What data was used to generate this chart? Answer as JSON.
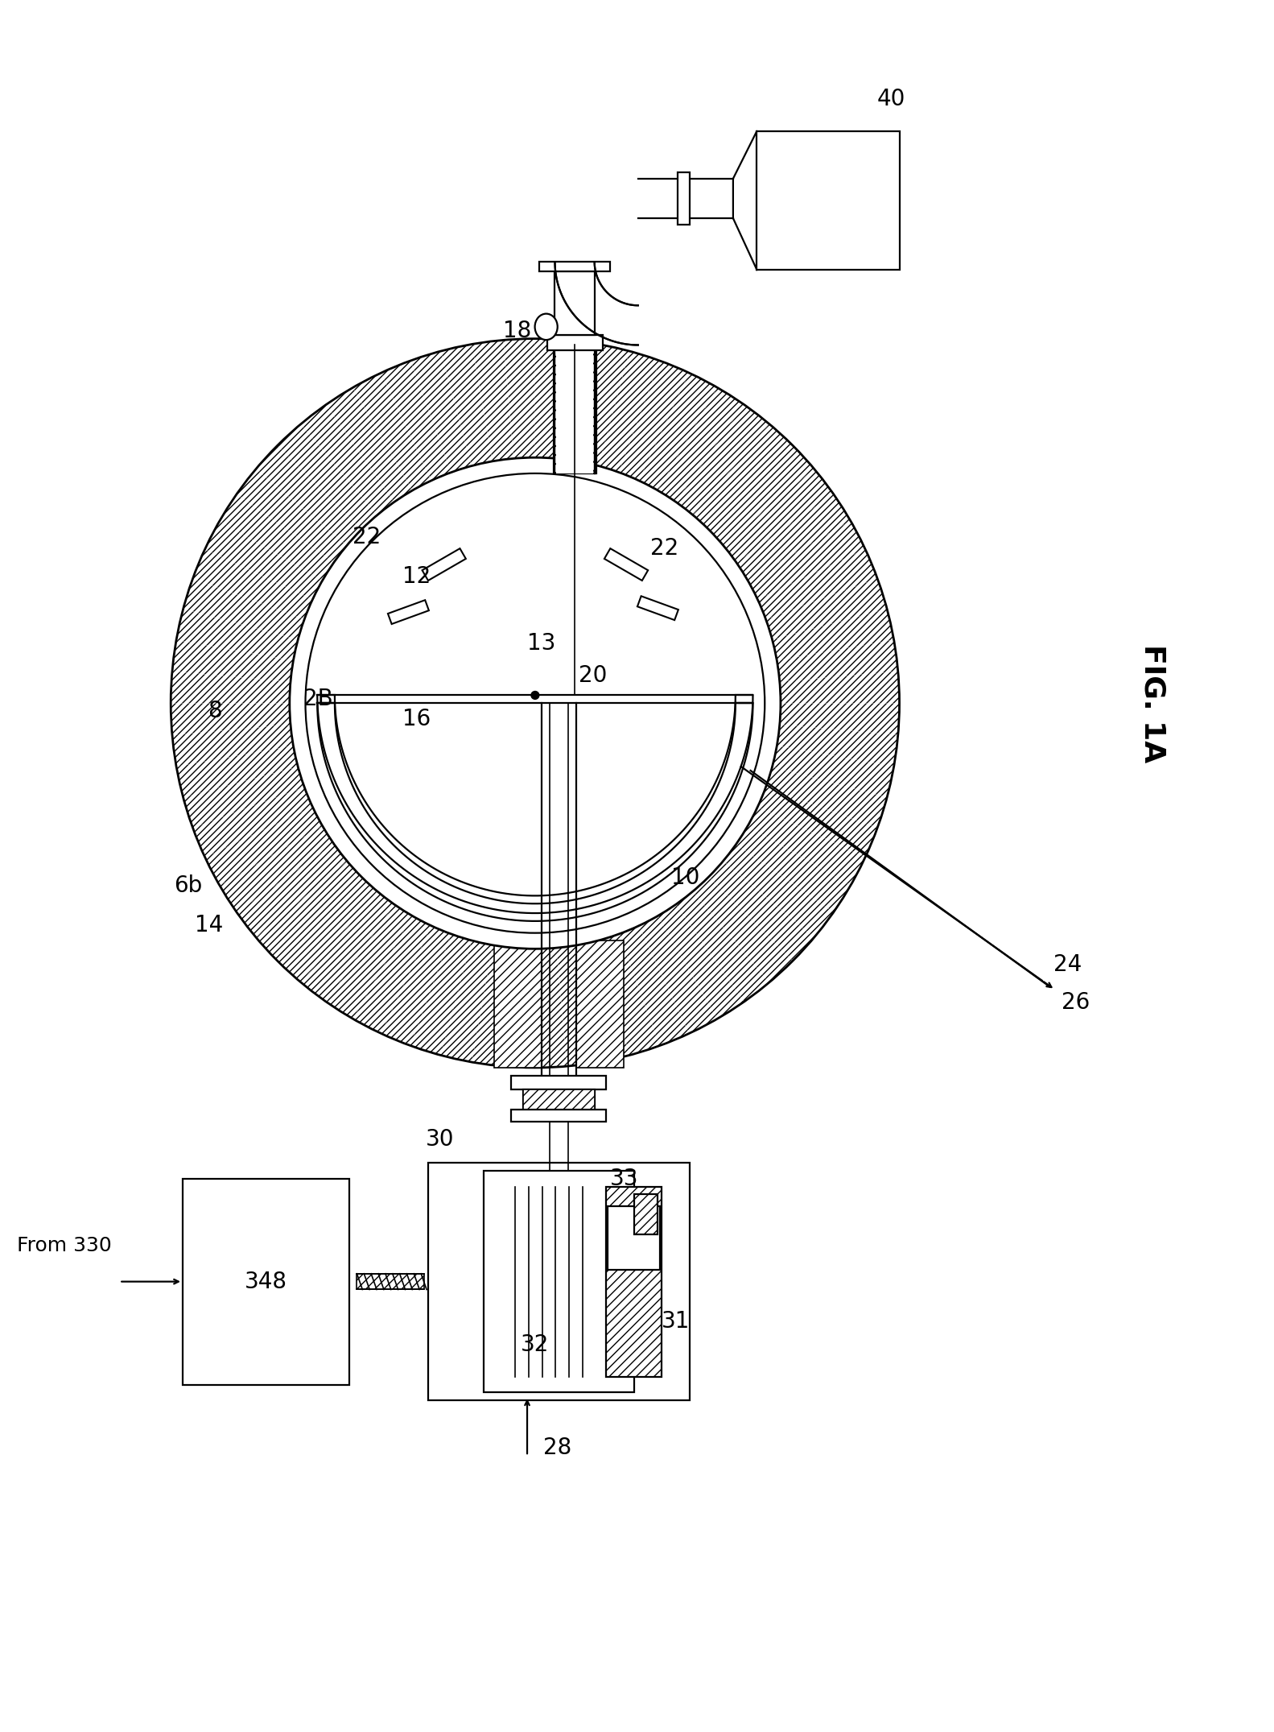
{
  "background_color": "#ffffff",
  "line_color": "#000000",
  "labels": {
    "fig": "FIG. 1A",
    "from_330": "From 330",
    "n8": "8",
    "n10": "10",
    "n12": "12",
    "n13": "13",
    "n14": "14",
    "n16": "16",
    "n18": "18",
    "n20": "20",
    "n22a": "22",
    "n22b": "22",
    "n24": "24",
    "n26": "26",
    "n28": "28",
    "n2B": "2B",
    "n30": "30",
    "n31": "31",
    "n32": "32",
    "n33": "33",
    "n40": "40",
    "n348": "348",
    "n6b": "6b"
  },
  "figsize": [
    15.83,
    21.51
  ],
  "dpi": 100
}
